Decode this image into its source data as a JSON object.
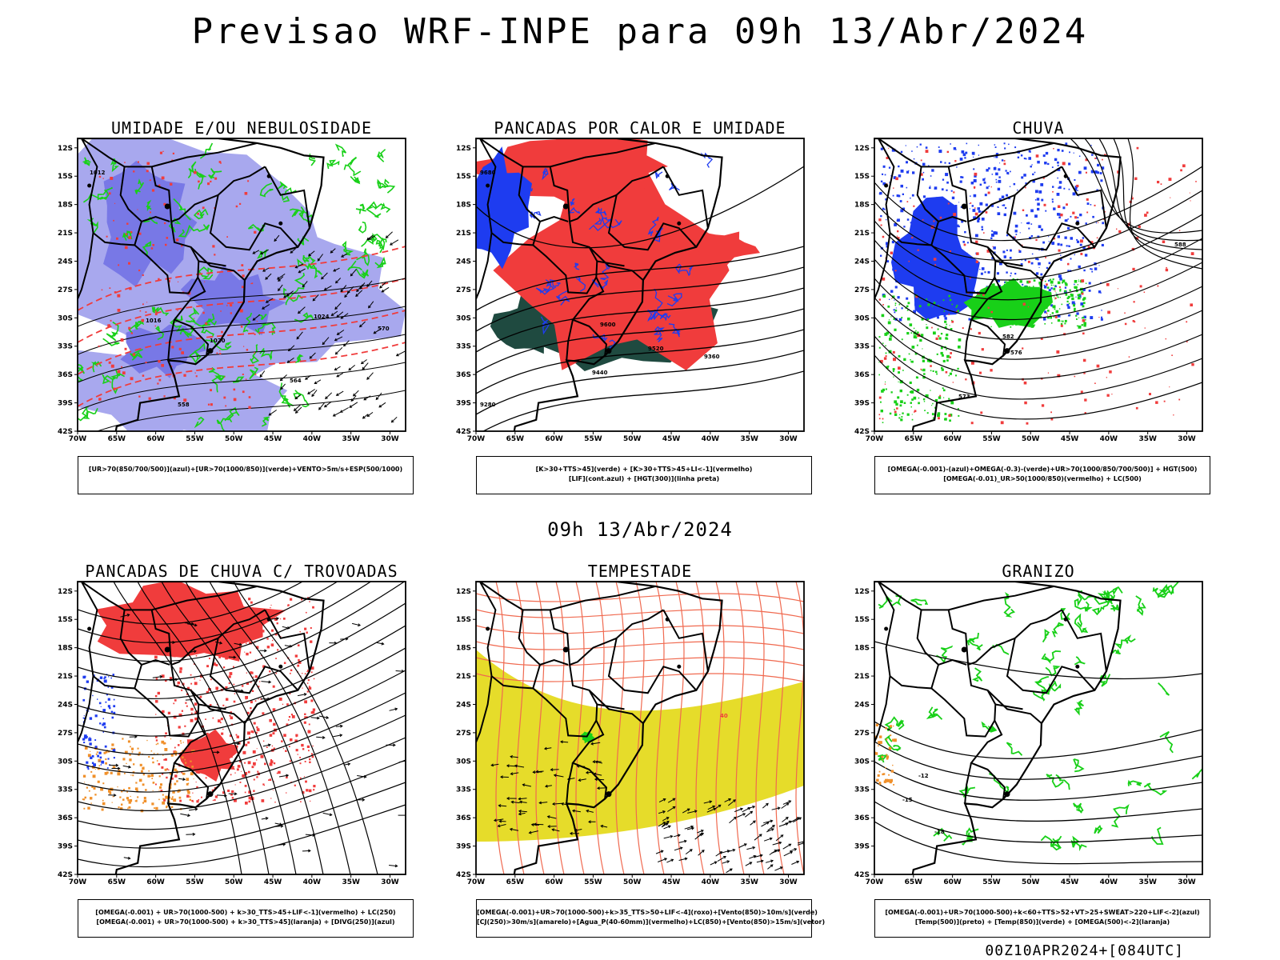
{
  "title": "Previsao WRF-INPE  para 09h 13/Abr/2024",
  "mid_title": "09h 13/Abr/2024",
  "footer": "00Z10APR2024+[084UTC]",
  "axes": {
    "lat_labels": [
      "12S",
      "15S",
      "18S",
      "21S",
      "24S",
      "27S",
      "30S",
      "33S",
      "36S",
      "39S",
      "42S"
    ],
    "lon_labels": [
      "70W",
      "65W",
      "60W",
      "55W",
      "50W",
      "45W",
      "40W",
      "35W",
      "30W"
    ]
  },
  "colors": {
    "blue": "#1e3cf0",
    "lavender": "#a8a8ee",
    "green": "#18d018",
    "red": "#f03c3c",
    "darkteal": "#1f4a40",
    "yellow": "#e6dc2a",
    "orange": "#f0902a",
    "black": "#000000"
  },
  "panels": [
    {
      "id": "umidade",
      "title": "UMIDADE E/OU NEBULOSIDADE",
      "legend": [
        "[UR>70(850/700/500)](azul)+[UR>70(1000/850)](verde)+VENTO>5m/s+ESP(500/1000)"
      ],
      "contour_labels": [
        "1012",
        "1016",
        "1020",
        "1024",
        "570",
        "564",
        "558"
      ]
    },
    {
      "id": "pancadas-calor",
      "title": "PANCADAS POR CALOR E UMIDADE",
      "legend": [
        "[K>30+TTS>45](verde) + [K>30+TTS>45+LI<-1](vermelho)",
        "[LIF](cont.azul) + [HGT(300)](linha preta)"
      ],
      "contour_labels": [
        "9680",
        "9600",
        "9520",
        "9440",
        "9360",
        "9280"
      ]
    },
    {
      "id": "chuva",
      "title": "CHUVA",
      "legend": [
        "[OMEGA(-0.001)-(azul)+OMEGA(-0.3)-(verde)+UR>70(1000/850/700/500)] + HGT(500)",
        "[OMEGA(-0.01)_UR>50(1000/850)(vermelho) + LC(500)"
      ],
      "contour_labels": [
        "588",
        "582",
        "576",
        "573"
      ]
    },
    {
      "id": "trovoadas",
      "title": "PANCADAS DE CHUVA C/ TROVOADAS",
      "legend": [
        "[OMEGA(-0.001) + UR>70(1000-500) + k>30_TTS>45+LIF<-1](vermelho) + LC(250)",
        "[OMEGA(-0.001) + UR>70(1000-500) + k>30_TTS>45](laranja) + [DIVG(250)](azul)"
      ],
      "contour_labels": []
    },
    {
      "id": "tempestade",
      "title": "TEMPESTADE",
      "legend": [
        "[OMEGA(-0.001)+UR>70(1000-500)+k>35_TTS>50+LIF<-4](roxo)+[Vento(850)>10m/s](verde)",
        "[CJ(250)>30m/s](amarelo)+[Agua_P(40-60mm)](vermelho)+LC(850)+[Vento(850)>15m/s](vetor)"
      ],
      "contour_labels": [
        "40"
      ]
    },
    {
      "id": "granizo",
      "title": "GRANIZO",
      "legend": [
        "[OMEGA(-0.001)+UR>70(1000-500)+k<60+TTS>52+VT>25+SWEAT>220+LIF<-2](azul)",
        "[Temp(500)](preto) + [Temp(850)](verde) + [OMEGA(500)<-2](laranja)"
      ],
      "contour_labels": [
        "-12",
        "-15",
        "-18"
      ]
    }
  ]
}
